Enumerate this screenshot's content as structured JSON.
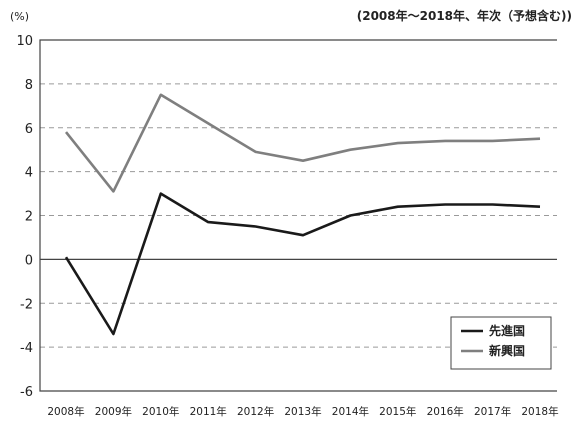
{
  "chart_data": {
    "type": "line",
    "y_unit": "(%)",
    "period_note": "(2008年～2018年、年次（予想含む))",
    "categories": [
      "2008年",
      "2009年",
      "2010年",
      "2011年",
      "2012年",
      "2013年",
      "2014年",
      "2015年",
      "2016年",
      "2017年",
      "2018年"
    ],
    "series": [
      {
        "name": "先進国",
        "color": "#1a1a1a",
        "values": [
          0.1,
          -3.4,
          3.0,
          1.7,
          1.5,
          1.1,
          2.0,
          2.4,
          2.5,
          2.5,
          2.4
        ]
      },
      {
        "name": "新興国",
        "color": "#7f7f7f",
        "values": [
          5.8,
          3.1,
          7.5,
          6.2,
          4.9,
          4.5,
          5.0,
          5.3,
          5.4,
          5.4,
          5.5
        ]
      }
    ],
    "ylim": [
      -6,
      10
    ],
    "yticks": [
      10,
      8,
      6,
      4,
      2,
      0,
      -2,
      -4,
      -6
    ],
    "grid": "dashed horizontal",
    "legend_position": "bottom-right"
  }
}
